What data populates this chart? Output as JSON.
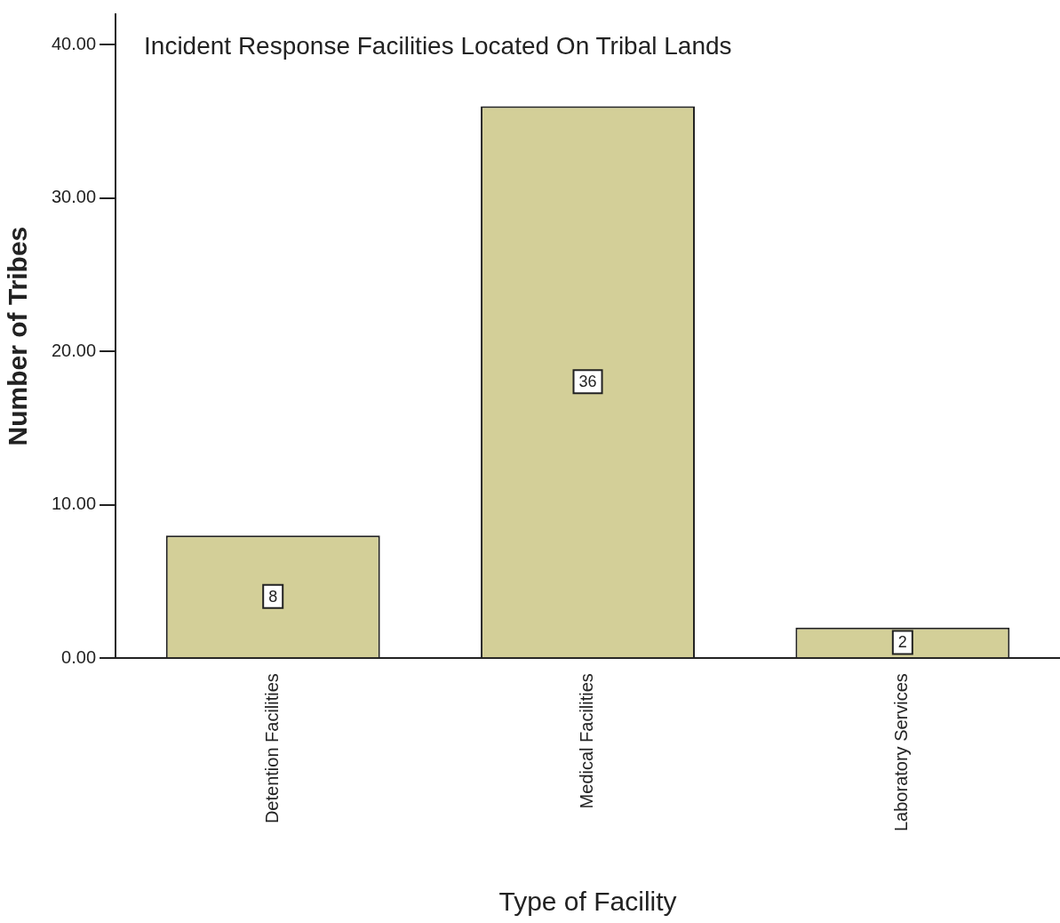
{
  "chart_data": {
    "type": "bar",
    "title": "Incident Response Facilities Located On Tribal Lands",
    "xlabel": "Type of Facility",
    "ylabel": "Number of Tribes",
    "categories": [
      "Detention Facilities",
      "Medical Facilities",
      "Laboratory Services"
    ],
    "values": [
      8,
      36,
      2
    ],
    "color": "#d3cf98",
    "ylim": [
      0,
      42
    ],
    "yticks": [
      {
        "value": 0,
        "label": "0.00"
      },
      {
        "value": 10,
        "label": "10.00"
      },
      {
        "value": 20,
        "label": "20.00"
      },
      {
        "value": 30,
        "label": "30.00"
      },
      {
        "value": 40,
        "label": "40.00"
      }
    ],
    "grid": false,
    "legend": false,
    "data_labels": true
  }
}
